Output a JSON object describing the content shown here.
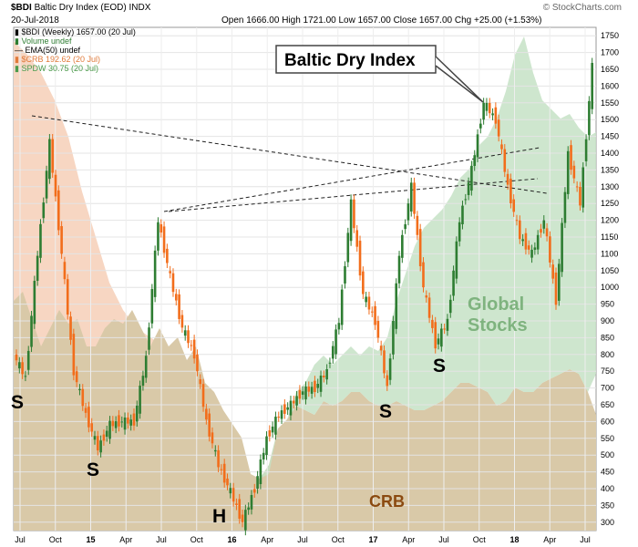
{
  "header": {
    "symbol": "$BDI",
    "name": "Baltic Dry Index (EOD)",
    "exchange": "INDX",
    "date": "20-Jul-2018",
    "open_label": "Open",
    "open": "1666.00",
    "high_label": "High",
    "high": "1721.00",
    "low_label": "Low",
    "low": "1657.00",
    "close_label": "Close",
    "close": "1657.00",
    "chg_label": "Chg",
    "chg": "+25.00 (+1.53%)",
    "watermark": "© StockCharts.com"
  },
  "legend": {
    "items": [
      {
        "text": "$BDI (Weekly) 1657.00 (20 Jul)",
        "color": "#000000"
      },
      {
        "text": "Volume undef",
        "color": "#2e7d32"
      },
      {
        "text": "EMA(50) undef",
        "color": "#000000"
      },
      {
        "text": "$CRB 192.62 (20 Jul)",
        "color": "#e07a3a"
      },
      {
        "text": "SPDW 30.75 (20 Jul)",
        "color": "#4a9a4a"
      }
    ]
  },
  "annotations": {
    "title_box": "Baltic Dry Index",
    "global_1": "Global",
    "global_2": "Stocks",
    "crb": "CRB",
    "pattern_labels": [
      "S",
      "S",
      "H",
      "S",
      "S"
    ]
  },
  "colors": {
    "up_candle": "#2e7d32",
    "down_candle": "#f26d1b",
    "crb_fill": "#d9c9a8",
    "crb_fill_early": "#f7d6c2",
    "spdw_fill": "#c6e2c6",
    "global_text": "#7fb37f",
    "crb_text": "#8b4a10"
  },
  "chart_data": {
    "type": "candlestick",
    "y_axis_ticks": [
      300,
      350,
      400,
      450,
      500,
      550,
      600,
      650,
      700,
      750,
      800,
      850,
      900,
      950,
      1000,
      1050,
      1100,
      1150,
      1200,
      1250,
      1300,
      1350,
      1400,
      1450,
      1500,
      1550,
      1600,
      1650,
      1700,
      1750
    ],
    "ylim": [
      275,
      1775
    ],
    "x_axis_ticks": [
      "Jul",
      "Oct",
      "15",
      "Apr",
      "Jul",
      "Oct",
      "16",
      "Apr",
      "Jul",
      "Oct",
      "17",
      "Apr",
      "Jul",
      "Oct",
      "18",
      "Apr",
      "Jul"
    ],
    "bdi_weekly_close_approx": [
      {
        "x": "2014-07",
        "y": 800
      },
      {
        "x": "2014-08",
        "y": 730
      },
      {
        "x": "2014-09",
        "y": 1100
      },
      {
        "x": "2014-10",
        "y": 1430
      },
      {
        "x": "2014-11",
        "y": 1100
      },
      {
        "x": "2014-12",
        "y": 750
      },
      {
        "x": "2015-01",
        "y": 620
      },
      {
        "x": "2015-02",
        "y": 520
      },
      {
        "x": "2015-03",
        "y": 590
      },
      {
        "x": "2015-04",
        "y": 600
      },
      {
        "x": "2015-05",
        "y": 600
      },
      {
        "x": "2015-06",
        "y": 790
      },
      {
        "x": "2015-07",
        "y": 1200
      },
      {
        "x": "2015-08",
        "y": 1030
      },
      {
        "x": "2015-09",
        "y": 880
      },
      {
        "x": "2015-10",
        "y": 800
      },
      {
        "x": "2015-11",
        "y": 600
      },
      {
        "x": "2015-12",
        "y": 470
      },
      {
        "x": "2016-01",
        "y": 390
      },
      {
        "x": "2016-02",
        "y": 300
      },
      {
        "x": "2016-03",
        "y": 400
      },
      {
        "x": "2016-04",
        "y": 550
      },
      {
        "x": "2016-05",
        "y": 620
      },
      {
        "x": "2016-06",
        "y": 650
      },
      {
        "x": "2016-07",
        "y": 690
      },
      {
        "x": "2016-08",
        "y": 700
      },
      {
        "x": "2016-09",
        "y": 750
      },
      {
        "x": "2016-10",
        "y": 900
      },
      {
        "x": "2016-11",
        "y": 1250
      },
      {
        "x": "2016-12",
        "y": 980
      },
      {
        "x": "2017-01",
        "y": 900
      },
      {
        "x": "2017-02",
        "y": 700
      },
      {
        "x": "2017-03",
        "y": 1100
      },
      {
        "x": "2017-04",
        "y": 1300
      },
      {
        "x": "2017-05",
        "y": 1000
      },
      {
        "x": "2017-06",
        "y": 830
      },
      {
        "x": "2017-07",
        "y": 900
      },
      {
        "x": "2017-08",
        "y": 1200
      },
      {
        "x": "2017-09",
        "y": 1350
      },
      {
        "x": "2017-10",
        "y": 1550
      },
      {
        "x": "2017-11",
        "y": 1500
      },
      {
        "x": "2017-12",
        "y": 1300
      },
      {
        "x": "2018-01",
        "y": 1150
      },
      {
        "x": "2018-02",
        "y": 1100
      },
      {
        "x": "2018-03",
        "y": 1200
      },
      {
        "x": "2018-04",
        "y": 960
      },
      {
        "x": "2018-05",
        "y": 1400
      },
      {
        "x": "2018-06",
        "y": 1250
      },
      {
        "x": "2018-07",
        "y": 1657
      }
    ]
  }
}
